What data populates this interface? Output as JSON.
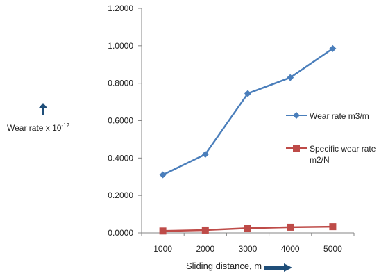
{
  "chart_data": {
    "type": "line",
    "x": [
      1000,
      2000,
      3000,
      4000,
      5000
    ],
    "x_tick_labels": [
      "1000",
      "2000",
      "3000",
      "4000",
      "5000"
    ],
    "y_tick_labels": [
      "0.0000",
      "0.2000",
      "0.4000",
      "0.6000",
      "0.8000",
      "1.0000",
      "1.2000"
    ],
    "ylim": [
      0,
      1.2
    ],
    "series": [
      {
        "name": "Wear rate m3/m",
        "values": [
          0.31,
          0.42,
          0.745,
          0.83,
          0.985
        ],
        "color": "#4a7ebb",
        "marker": "diamond"
      },
      {
        "name": "Specific wear rate m2/N",
        "name_line1": "Specific wear rate",
        "name_line2": "m2/N",
        "values": [
          0.01,
          0.015,
          0.025,
          0.03,
          0.033
        ],
        "color": "#be4b48",
        "marker": "square"
      }
    ],
    "xlabel": "Sliding distance, m",
    "ylabel": "Wear rate x 10",
    "ylabel_exponent": "-12",
    "grid": false,
    "legend_position": "right"
  }
}
